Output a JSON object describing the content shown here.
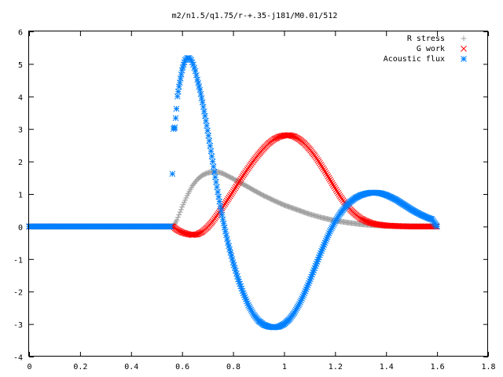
{
  "chart_data": {
    "type": "scatter",
    "title": "m2/n1.5/q1.75/r-+.35-j181/M0.01/512",
    "xlim": [
      0,
      1.8
    ],
    "ylim": [
      -4,
      6
    ],
    "xticks": [
      "0",
      "0.2",
      "0.4",
      "0.6",
      "0.8",
      "1",
      "1.2",
      "1.4",
      "1.6",
      "1.8"
    ],
    "yticks": [
      "-4",
      "-3",
      "-2",
      "-1",
      "0",
      "1",
      "2",
      "3",
      "4",
      "5",
      "6"
    ],
    "grid": false,
    "legend_position": "top-right",
    "series": [
      {
        "name": "R stress",
        "marker": "plus",
        "color": "#a0a0a0",
        "points": [
          [
            0.0,
            0.0
          ],
          [
            0.1,
            0.0
          ],
          [
            0.2,
            0.0
          ],
          [
            0.3,
            0.0
          ],
          [
            0.4,
            0.0
          ],
          [
            0.5,
            0.0
          ],
          [
            0.565,
            0.0
          ],
          [
            0.58,
            0.2
          ],
          [
            0.6,
            0.6
          ],
          [
            0.62,
            0.95
          ],
          [
            0.64,
            1.25
          ],
          [
            0.66,
            1.45
          ],
          [
            0.68,
            1.58
          ],
          [
            0.7,
            1.65
          ],
          [
            0.72,
            1.68
          ],
          [
            0.74,
            1.68
          ],
          [
            0.76,
            1.63
          ],
          [
            0.78,
            1.55
          ],
          [
            0.8,
            1.47
          ],
          [
            0.84,
            1.3
          ],
          [
            0.88,
            1.12
          ],
          [
            0.92,
            0.95
          ],
          [
            0.96,
            0.8
          ],
          [
            1.0,
            0.66
          ],
          [
            1.05,
            0.52
          ],
          [
            1.1,
            0.38
          ],
          [
            1.15,
            0.27
          ],
          [
            1.2,
            0.18
          ],
          [
            1.25,
            0.12
          ],
          [
            1.3,
            0.07
          ],
          [
            1.35,
            0.04
          ],
          [
            1.4,
            0.02
          ],
          [
            1.5,
            0.01
          ],
          [
            1.6,
            0.0
          ]
        ]
      },
      {
        "name": "G work",
        "marker": "cross",
        "color": "#ff0000",
        "points": [
          [
            0.0,
            0.0
          ],
          [
            0.1,
            0.0
          ],
          [
            0.2,
            0.0
          ],
          [
            0.3,
            0.0
          ],
          [
            0.4,
            0.0
          ],
          [
            0.5,
            0.0
          ],
          [
            0.565,
            0.0
          ],
          [
            0.58,
            -0.1
          ],
          [
            0.6,
            -0.18
          ],
          [
            0.62,
            -0.23
          ],
          [
            0.64,
            -0.26
          ],
          [
            0.66,
            -0.24
          ],
          [
            0.68,
            -0.16
          ],
          [
            0.7,
            -0.02
          ],
          [
            0.72,
            0.16
          ],
          [
            0.74,
            0.38
          ],
          [
            0.76,
            0.6
          ],
          [
            0.78,
            0.84
          ],
          [
            0.8,
            1.08
          ],
          [
            0.82,
            1.33
          ],
          [
            0.84,
            1.57
          ],
          [
            0.86,
            1.8
          ],
          [
            0.88,
            2.02
          ],
          [
            0.9,
            2.22
          ],
          [
            0.92,
            2.4
          ],
          [
            0.94,
            2.56
          ],
          [
            0.96,
            2.68
          ],
          [
            0.98,
            2.76
          ],
          [
            1.0,
            2.8
          ],
          [
            1.02,
            2.81
          ],
          [
            1.04,
            2.77
          ],
          [
            1.06,
            2.68
          ],
          [
            1.08,
            2.55
          ],
          [
            1.1,
            2.38
          ],
          [
            1.12,
            2.18
          ],
          [
            1.14,
            1.95
          ],
          [
            1.16,
            1.7
          ],
          [
            1.18,
            1.44
          ],
          [
            1.2,
            1.18
          ],
          [
            1.22,
            0.93
          ],
          [
            1.24,
            0.71
          ],
          [
            1.26,
            0.52
          ],
          [
            1.28,
            0.37
          ],
          [
            1.3,
            0.25
          ],
          [
            1.32,
            0.17
          ],
          [
            1.34,
            0.11
          ],
          [
            1.36,
            0.07
          ],
          [
            1.4,
            0.03
          ],
          [
            1.45,
            0.01
          ],
          [
            1.5,
            0.0
          ],
          [
            1.6,
            0.0
          ]
        ]
      },
      {
        "name": "Acoustic flux",
        "marker": "star",
        "color": "#0080ff",
        "points": [
          [
            0.0,
            0.0
          ],
          [
            0.1,
            0.0
          ],
          [
            0.2,
            0.0
          ],
          [
            0.3,
            0.0
          ],
          [
            0.4,
            0.0
          ],
          [
            0.5,
            0.0
          ],
          [
            0.555,
            0.0
          ],
          [
            0.562,
            1.62
          ],
          [
            0.566,
            3.0
          ],
          [
            0.572,
            3.05
          ],
          [
            0.578,
            3.62
          ],
          [
            0.582,
            4.0
          ],
          [
            0.588,
            4.3
          ],
          [
            0.594,
            4.55
          ],
          [
            0.6,
            4.8
          ],
          [
            0.606,
            4.98
          ],
          [
            0.612,
            5.12
          ],
          [
            0.62,
            5.18
          ],
          [
            0.628,
            5.18
          ],
          [
            0.636,
            5.12
          ],
          [
            0.644,
            4.98
          ],
          [
            0.652,
            4.78
          ],
          [
            0.66,
            4.52
          ],
          [
            0.67,
            4.2
          ],
          [
            0.68,
            3.82
          ],
          [
            0.69,
            3.4
          ],
          [
            0.7,
            2.95
          ],
          [
            0.71,
            2.48
          ],
          [
            0.72,
            2.0
          ],
          [
            0.73,
            1.52
          ],
          [
            0.74,
            1.06
          ],
          [
            0.75,
            0.62
          ],
          [
            0.76,
            0.22
          ],
          [
            0.77,
            -0.15
          ],
          [
            0.78,
            -0.5
          ],
          [
            0.8,
            -1.1
          ],
          [
            0.82,
            -1.62
          ],
          [
            0.84,
            -2.05
          ],
          [
            0.86,
            -2.42
          ],
          [
            0.88,
            -2.7
          ],
          [
            0.9,
            -2.9
          ],
          [
            0.92,
            -3.02
          ],
          [
            0.94,
            -3.08
          ],
          [
            0.96,
            -3.1
          ],
          [
            0.98,
            -3.08
          ],
          [
            1.0,
            -3.0
          ],
          [
            1.02,
            -2.86
          ],
          [
            1.04,
            -2.65
          ],
          [
            1.06,
            -2.38
          ],
          [
            1.08,
            -2.05
          ],
          [
            1.1,
            -1.68
          ],
          [
            1.12,
            -1.28
          ],
          [
            1.14,
            -0.88
          ],
          [
            1.16,
            -0.5
          ],
          [
            1.18,
            -0.15
          ],
          [
            1.2,
            0.15
          ],
          [
            1.22,
            0.4
          ],
          [
            1.24,
            0.6
          ],
          [
            1.26,
            0.76
          ],
          [
            1.28,
            0.88
          ],
          [
            1.3,
            0.96
          ],
          [
            1.32,
            1.01
          ],
          [
            1.34,
            1.04
          ],
          [
            1.36,
            1.04
          ],
          [
            1.38,
            1.02
          ],
          [
            1.4,
            0.97
          ],
          [
            1.42,
            0.9
          ],
          [
            1.44,
            0.82
          ],
          [
            1.46,
            0.72
          ],
          [
            1.48,
            0.62
          ],
          [
            1.5,
            0.52
          ],
          [
            1.52,
            0.43
          ],
          [
            1.54,
            0.35
          ],
          [
            1.56,
            0.28
          ],
          [
            1.58,
            0.22
          ],
          [
            1.6,
            0.0
          ]
        ]
      }
    ]
  }
}
